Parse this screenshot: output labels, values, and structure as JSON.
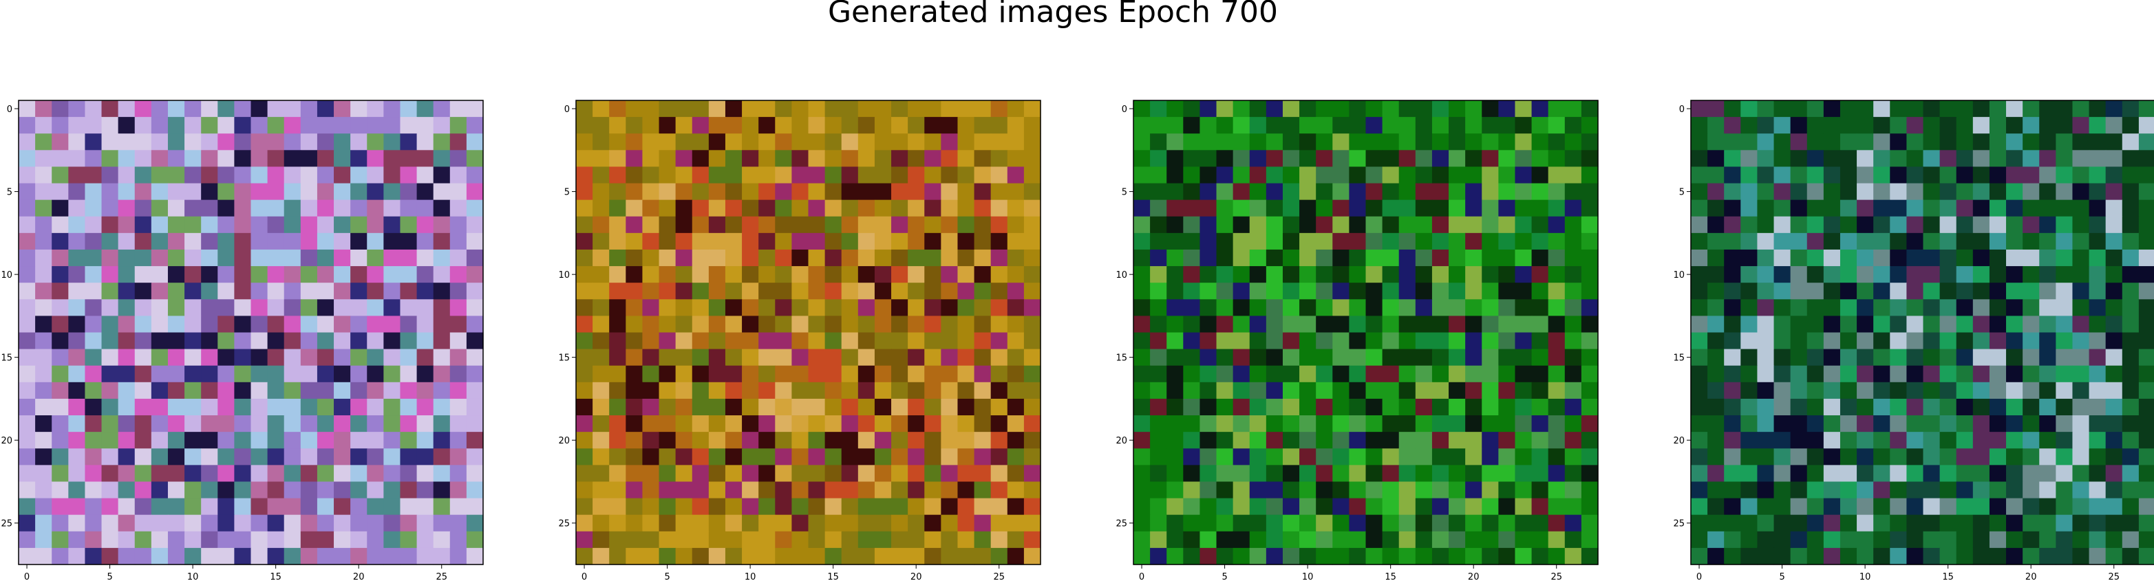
{
  "figure": {
    "suptitle": "Generated images Epoch 700"
  },
  "chart_data": [
    {
      "type": "heatmap",
      "panel": 1,
      "grid_size": 28,
      "xlim": [
        -0.5,
        27.5
      ],
      "ylim": [
        27.5,
        -0.5
      ],
      "x_ticks": [
        0,
        5,
        10,
        15,
        20,
        25
      ],
      "y_ticks": [
        0,
        5,
        10,
        15,
        20,
        25
      ],
      "grid": false,
      "palette": [
        "#9a7fd0",
        "#c8b3e6",
        "#d8cce8",
        "#7b5aa8",
        "#b86aa0",
        "#4b8a8c",
        "#2f2a7a",
        "#6fa35a",
        "#d45ac0",
        "#8a3a5a",
        "#1c1440",
        "#a4c8e8"
      ]
    },
    {
      "type": "heatmap",
      "panel": 2,
      "grid_size": 28,
      "xlim": [
        -0.5,
        27.5
      ],
      "ylim": [
        27.5,
        -0.5
      ],
      "x_ticks": [
        0,
        5,
        10,
        15,
        20,
        25
      ],
      "y_ticks": [
        0,
        5,
        10,
        15,
        20,
        25
      ],
      "grid": false,
      "palette": [
        "#a8860c",
        "#c49a1a",
        "#8a7a10",
        "#b26a14",
        "#d4a43a",
        "#7a5a0a",
        "#c84a22",
        "#6a1a2a",
        "#9a2a6a",
        "#5a7a1a",
        "#dcb060",
        "#3a0a0a"
      ]
    },
    {
      "type": "heatmap",
      "panel": 3,
      "grid_size": 28,
      "xlim": [
        -0.5,
        27.5
      ],
      "ylim": [
        27.5,
        -0.5
      ],
      "x_ticks": [
        0,
        5,
        10,
        15,
        20,
        25
      ],
      "y_ticks": [
        0,
        5,
        10,
        15,
        20,
        25
      ],
      "grid": false,
      "palette": [
        "#0a7a0a",
        "#1a9a1a",
        "#0a5a12",
        "#2aba2a",
        "#0a3a0a",
        "#3a7a4a",
        "#0a1a10",
        "#6a1a2a",
        "#1a1a6a",
        "#4aa04a",
        "#128a3a",
        "#88b040"
      ]
    },
    {
      "type": "heatmap",
      "panel": 4,
      "grid_size": 28,
      "xlim": [
        -0.5,
        27.5
      ],
      "ylim": [
        27.5,
        -0.5
      ],
      "x_ticks": [
        0,
        5,
        10,
        15,
        20,
        25
      ],
      "y_ticks": [
        0,
        5,
        10,
        15,
        20,
        25
      ],
      "grid": false,
      "palette": [
        "#0a5a1a",
        "#1a7a3a",
        "#0a3a1a",
        "#2a8a6a",
        "#3a9a9a",
        "#0a2a4a",
        "#0a0a2a",
        "#5a2a5a",
        "#1aa05a",
        "#6a8a8a",
        "#b8c8d8",
        "#124a3a"
      ]
    }
  ]
}
